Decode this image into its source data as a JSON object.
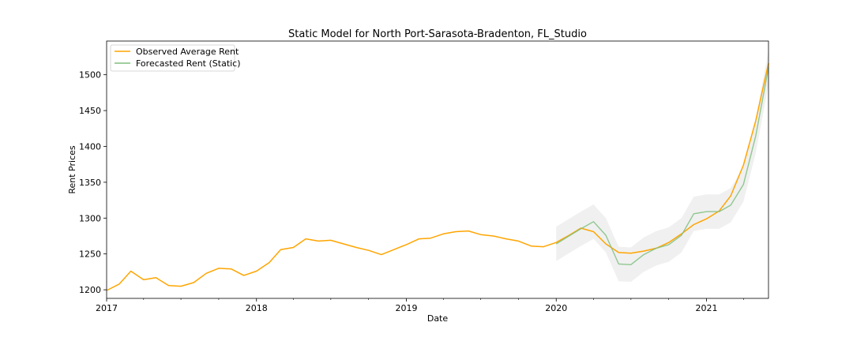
{
  "chart_data": {
    "type": "line",
    "title": "Static Model for North Port-Sarasota-Bradenton, FL_Studio",
    "xlabel": "Date",
    "ylabel": "Rent Prices",
    "xlim": [
      "2017-01-01",
      "2021-06-01"
    ],
    "ylim": [
      1188,
      1547
    ],
    "x_ticks": [
      "2017",
      "2018",
      "2019",
      "2020",
      "2021"
    ],
    "y_ticks": [
      1200,
      1250,
      1300,
      1350,
      1400,
      1450,
      1500
    ],
    "grid": false,
    "legend_position": "upper-left",
    "series": [
      {
        "name": "Observed Average Rent",
        "color": "#ffa500",
        "x": [
          "2017-01",
          "2017-02",
          "2017-03",
          "2017-04",
          "2017-05",
          "2017-06",
          "2017-07",
          "2017-08",
          "2017-09",
          "2017-10",
          "2017-11",
          "2017-12",
          "2018-01",
          "2018-02",
          "2018-03",
          "2018-04",
          "2018-05",
          "2018-06",
          "2018-07",
          "2018-08",
          "2018-09",
          "2018-10",
          "2018-11",
          "2018-12",
          "2019-01",
          "2019-02",
          "2019-03",
          "2019-04",
          "2019-05",
          "2019-06",
          "2019-07",
          "2019-08",
          "2019-09",
          "2019-10",
          "2019-11",
          "2019-12",
          "2020-01",
          "2020-02",
          "2020-03",
          "2020-04",
          "2020-05",
          "2020-06",
          "2020-07",
          "2020-08",
          "2020-09",
          "2020-10",
          "2020-11",
          "2020-12",
          "2021-01",
          "2021-02",
          "2021-03",
          "2021-04",
          "2021-05",
          "2021-06"
        ],
        "values": [
          1199,
          1208,
          1226,
          1214,
          1217,
          1206,
          1205,
          1210,
          1223,
          1230,
          1229,
          1220,
          1226,
          1238,
          1256,
          1259,
          1271,
          1268,
          1269,
          1264,
          1259,
          1255,
          1249,
          1256,
          1263,
          1271,
          1272,
          1278,
          1281,
          1282,
          1277,
          1275,
          1271,
          1268,
          1261,
          1260,
          1266,
          1276,
          1286,
          1281,
          1264,
          1252,
          1251,
          1254,
          1258,
          1266,
          1278,
          1291,
          1299,
          1310,
          1331,
          1374,
          1436,
          1516
        ]
      },
      {
        "name": "Forecasted Rent (Static)",
        "color": "#7fbf7f",
        "x": [
          "2020-01",
          "2020-02",
          "2020-03",
          "2020-04",
          "2020-05",
          "2020-06",
          "2020-07",
          "2020-08",
          "2020-09",
          "2020-10",
          "2020-11",
          "2020-12",
          "2021-01",
          "2021-02",
          "2021-03",
          "2021-04",
          "2021-05",
          "2021-06"
        ],
        "values": [
          1264,
          1275,
          1285,
          1295,
          1276,
          1236,
          1235,
          1249,
          1258,
          1263,
          1276,
          1306,
          1309,
          1309,
          1318,
          1347,
          1415,
          1510
        ],
        "ci_lower": [
          1240,
          1251,
          1261,
          1271,
          1252,
          1212,
          1211,
          1225,
          1234,
          1239,
          1252,
          1282,
          1285,
          1285,
          1294,
          1323,
          1391,
          1486
        ],
        "ci_upper": [
          1288,
          1299,
          1309,
          1319,
          1300,
          1260,
          1259,
          1273,
          1282,
          1287,
          1300,
          1330,
          1333,
          1333,
          1342,
          1371,
          1439,
          1534
        ]
      }
    ]
  }
}
